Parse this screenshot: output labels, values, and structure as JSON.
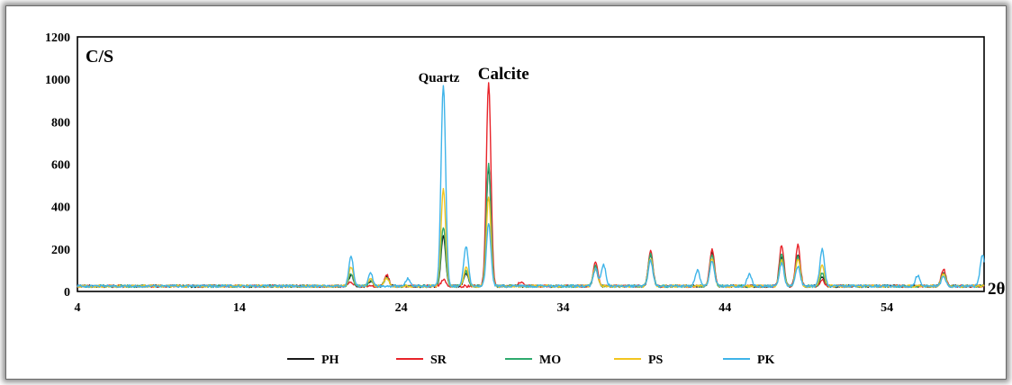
{
  "chart_data": {
    "type": "line",
    "title": "",
    "xlabel": "",
    "ylabel": "C/S",
    "x_axis_label": "2θ",
    "xlim": [
      4,
      60
    ],
    "ylim": [
      0,
      1200
    ],
    "x_ticks": [
      "4",
      "14",
      "24",
      "34",
      "44",
      "54"
    ],
    "y_ticks": [
      "0",
      "200",
      "400",
      "600",
      "800",
      "1000",
      "1200"
    ],
    "grid": false,
    "legend_position": "bottom",
    "background_cps": 25,
    "annotations": [
      {
        "text": "Quartz",
        "x": 26.6
      },
      {
        "text": "Calcite",
        "x": 29.4
      }
    ],
    "series": [
      {
        "name": "PH",
        "color": "#1a1a1a",
        "peaks": [
          [
            20.9,
            50
          ],
          [
            22.1,
            25
          ],
          [
            23.1,
            45
          ],
          [
            26.6,
            240
          ],
          [
            28.0,
            60
          ],
          [
            29.4,
            560
          ],
          [
            36.0,
            90
          ],
          [
            39.4,
            150
          ],
          [
            43.2,
            160
          ],
          [
            47.5,
            140
          ],
          [
            48.5,
            150
          ],
          [
            50.0,
            40
          ],
          [
            57.5,
            65
          ]
        ]
      },
      {
        "name": "SR",
        "color": "#e8242a",
        "peaks": [
          [
            20.9,
            20
          ],
          [
            23.1,
            55
          ],
          [
            26.6,
            30
          ],
          [
            29.4,
            960
          ],
          [
            31.4,
            20
          ],
          [
            36.0,
            110
          ],
          [
            39.4,
            170
          ],
          [
            43.2,
            175
          ],
          [
            47.5,
            195
          ],
          [
            48.5,
            195
          ],
          [
            50.0,
            30
          ],
          [
            57.5,
            80
          ]
        ]
      },
      {
        "name": "MO",
        "color": "#2eaa6e",
        "peaks": [
          [
            20.9,
            55
          ],
          [
            22.1,
            25
          ],
          [
            23.1,
            40
          ],
          [
            26.6,
            280
          ],
          [
            28.0,
            70
          ],
          [
            29.4,
            580
          ],
          [
            36.0,
            95
          ],
          [
            39.4,
            150
          ],
          [
            43.2,
            150
          ],
          [
            47.5,
            150
          ],
          [
            48.5,
            140
          ],
          [
            50.0,
            60
          ],
          [
            57.5,
            60
          ]
        ]
      },
      {
        "name": "PS",
        "color": "#f2c51f",
        "peaks": [
          [
            20.9,
            90
          ],
          [
            22.1,
            35
          ],
          [
            23.1,
            40
          ],
          [
            26.6,
            460
          ],
          [
            28.0,
            90
          ],
          [
            29.4,
            420
          ],
          [
            36.0,
            85
          ],
          [
            39.4,
            130
          ],
          [
            43.2,
            130
          ],
          [
            47.5,
            120
          ],
          [
            48.5,
            130
          ],
          [
            50.0,
            100
          ],
          [
            57.5,
            55
          ]
        ]
      },
      {
        "name": "PK",
        "color": "#3fb4e9",
        "peaks": [
          [
            20.9,
            140
          ],
          [
            22.1,
            60
          ],
          [
            24.4,
            35
          ],
          [
            26.6,
            950
          ],
          [
            28.0,
            190
          ],
          [
            29.4,
            295
          ],
          [
            36.0,
            80
          ],
          [
            36.5,
            100
          ],
          [
            39.4,
            120
          ],
          [
            42.3,
            75
          ],
          [
            43.2,
            120
          ],
          [
            45.5,
            55
          ],
          [
            47.5,
            110
          ],
          [
            48.5,
            95
          ],
          [
            50.0,
            175
          ],
          [
            55.9,
            50
          ],
          [
            57.5,
            45
          ],
          [
            59.9,
            150
          ]
        ]
      }
    ]
  }
}
